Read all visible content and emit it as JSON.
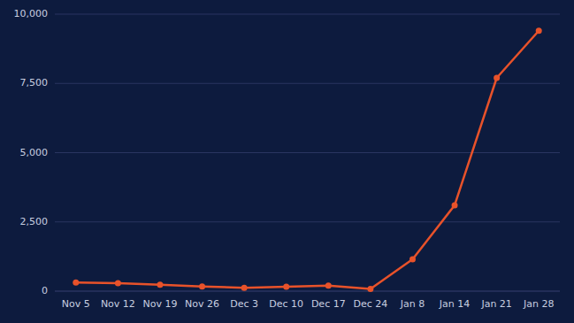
{
  "chart_data": {
    "type": "line",
    "categories": [
      "Nov 5",
      "Nov 12",
      "Nov 19",
      "Nov 26",
      "Dec 3",
      "Dec 10",
      "Dec 17",
      "Dec 24",
      "Jan 8",
      "Jan 14",
      "Jan 21",
      "Jan 28"
    ],
    "values": [
      310,
      290,
      230,
      170,
      120,
      160,
      200,
      80,
      1150,
      3100,
      7700,
      9400
    ],
    "color": "#e8522a",
    "marker": "circle",
    "ylim": [
      0,
      10000
    ],
    "yticks": [
      0,
      {
        "value": 2500,
        "label": "2,500"
      },
      {
        "value": 5000,
        "label": "5,000"
      },
      {
        "value": 7500,
        "label": "7,500"
      },
      {
        "value": 10000,
        "label": "10,000"
      }
    ],
    "grid": true
  }
}
